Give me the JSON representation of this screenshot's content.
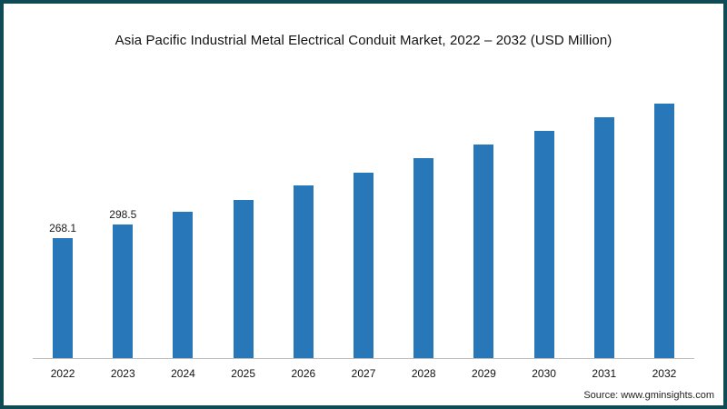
{
  "header": {
    "title": "Asia Pacific Industrial Metal Electrical Conduit Market, 2022 – 2032 (USD Million)"
  },
  "footer": {
    "source": "Source: www.gminsights.com"
  },
  "colors": {
    "bar": "#2878b9",
    "frame_border": "#0e4b55",
    "axis_line": "#bdbdbd"
  },
  "chart_data": {
    "type": "bar",
    "title": "Asia Pacific Industrial Metal Electrical Conduit Market, 2022 – 2032 (USD Million)",
    "categories": [
      "2022",
      "2023",
      "2024",
      "2025",
      "2026",
      "2027",
      "2028",
      "2029",
      "2030",
      "2031",
      "2032"
    ],
    "values": [
      268.1,
      298.5,
      328,
      354,
      385,
      414,
      446,
      477,
      508,
      538,
      568
    ],
    "value_labels": {
      "2022": "268.1",
      "2023": "298.5"
    },
    "xlabel": "",
    "ylabel": "",
    "ylim": [
      0,
      650
    ],
    "grid": false,
    "legend": false,
    "axis_visible": "x-only"
  }
}
